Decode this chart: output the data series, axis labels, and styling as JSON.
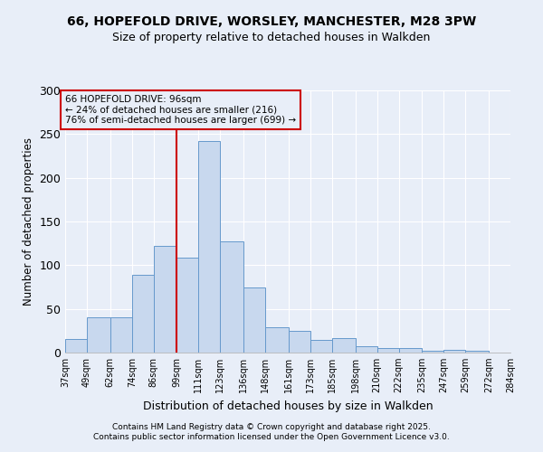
{
  "title1": "66, HOPEFOLD DRIVE, WORSLEY, MANCHESTER, M28 3PW",
  "title2": "Size of property relative to detached houses in Walkden",
  "xlabel": "Distribution of detached houses by size in Walkden",
  "ylabel": "Number of detached properties",
  "bar_color": "#c8d8ee",
  "bar_edge_color": "#6699cc",
  "background_color": "#e8eef8",
  "grid_color": "#ffffff",
  "annotation_box_color": "#cc0000",
  "vline_color": "#cc0000",
  "bin_edges": [
    37,
    49,
    62,
    74,
    86,
    99,
    111,
    123,
    136,
    148,
    161,
    173,
    185,
    198,
    210,
    222,
    235,
    247,
    259,
    272,
    284
  ],
  "heights": [
    16,
    40,
    40,
    89,
    122,
    109,
    242,
    127,
    74,
    29,
    25,
    14,
    17,
    7,
    5,
    5,
    2,
    3,
    2,
    0
  ],
  "tick_labels": [
    "37sqm",
    "49sqm",
    "62sqm",
    "74sqm",
    "86sqm",
    "99sqm",
    "111sqm",
    "123sqm",
    "136sqm",
    "148sqm",
    "161sqm",
    "173sqm",
    "185sqm",
    "198sqm",
    "210sqm",
    "222sqm",
    "235sqm",
    "247sqm",
    "259sqm",
    "272sqm",
    "284sqm"
  ],
  "vline_x": 99,
  "ann_line1": "66 HOPEFOLD DRIVE: 96sqm",
  "ann_line2": "← 24% of detached houses are smaller (216)",
  "ann_line3": "76% of semi-detached houses are larger (699) →",
  "ylim_max": 300,
  "yticks": [
    0,
    50,
    100,
    150,
    200,
    250,
    300
  ],
  "footnote": "Contains HM Land Registry data © Crown copyright and database right 2025.\nContains public sector information licensed under the Open Government Licence v3.0."
}
